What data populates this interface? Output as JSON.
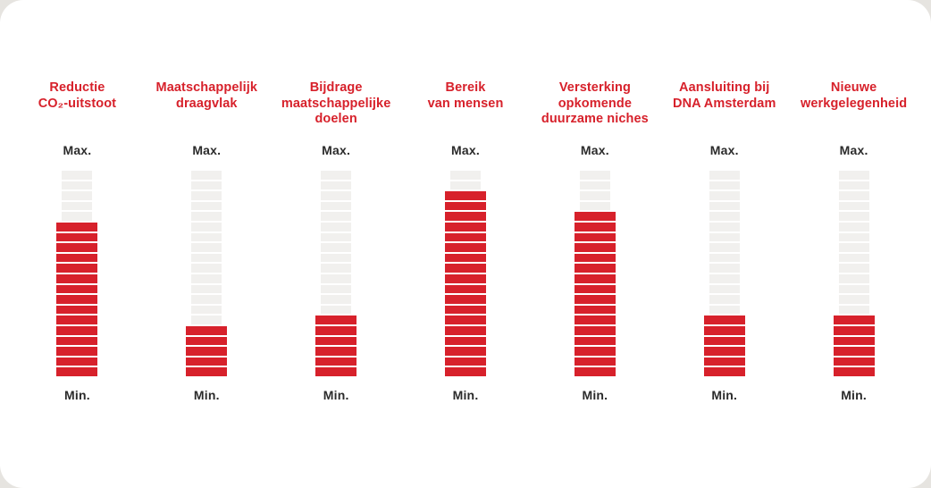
{
  "page": {
    "background_color": "#e6e4e0",
    "card_color": "#ffffff"
  },
  "colors": {
    "accent_red": "#d7212b",
    "track_gray": "#f1f0ee",
    "separator_white": "#ffffff",
    "label_dark": "#2b2b2b"
  },
  "scale_labels": {
    "max": "Max.",
    "min": "Min."
  },
  "gauges": [
    {
      "title_lines": [
        "Reductie",
        "CO₂-uitstoot"
      ],
      "filled": 15,
      "total": 20
    },
    {
      "title_lines": [
        "Maatschappelijk",
        "draagvlak"
      ],
      "filled": 5,
      "total": 20
    },
    {
      "title_lines": [
        "Bijdrage",
        "maatschappelijke",
        "doelen"
      ],
      "filled": 6,
      "total": 20
    },
    {
      "title_lines": [
        "Bereik",
        "van mensen"
      ],
      "filled": 18,
      "total": 20
    },
    {
      "title_lines": [
        "Versterking",
        "opkomende",
        "duurzame niches"
      ],
      "filled": 16,
      "total": 20
    },
    {
      "title_lines": [
        "Aansluiting bij",
        "DNA Amsterdam"
      ],
      "filled": 6,
      "total": 20
    },
    {
      "title_lines": [
        "Nieuwe",
        "werkgelegenheid"
      ],
      "filled": 6,
      "total": 20
    }
  ],
  "chart_data": {
    "type": "bar",
    "subtype": "segmented-vertical-gauges",
    "title": "",
    "categories": [
      "Reductie CO₂-uitstoot",
      "Maatschappelijk draagvlak",
      "Bijdrage maatschappelijke doelen",
      "Bereik van mensen",
      "Versterking opkomende duurzame niches",
      "Aansluiting bij DNA Amsterdam",
      "Nieuwe werkgelegenheid"
    ],
    "values": [
      15,
      5,
      6,
      18,
      16,
      6,
      6
    ],
    "value_unit": "filled segments (of 20)",
    "values_fraction": [
      0.75,
      0.25,
      0.3,
      0.9,
      0.8,
      0.3,
      0.3
    ],
    "ylim": [
      0,
      20
    ],
    "axis_min_label": "Min.",
    "axis_max_label": "Max.",
    "grid": false,
    "legend": false,
    "bar_fill_color": "#d7212b",
    "bar_track_color": "#f1f0ee"
  }
}
